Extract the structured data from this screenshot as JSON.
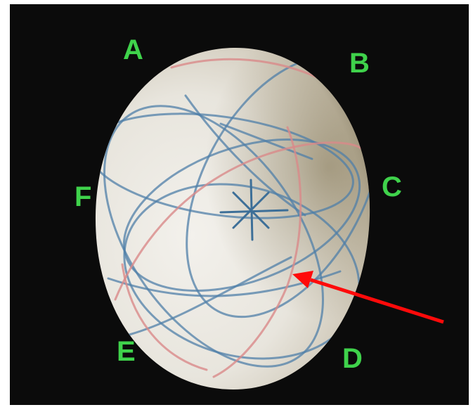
{
  "labels": {
    "a": "A",
    "b": "B",
    "c": "C",
    "d": "D",
    "e": "E",
    "f": "F"
  },
  "colors": {
    "background": "#0b0b0b",
    "label": "#3fd24b",
    "arrow": "#ff0a0a",
    "egg": "#ece9e2",
    "blue_lines": "#4f7fa8",
    "red_lines": "#d98a8a"
  }
}
